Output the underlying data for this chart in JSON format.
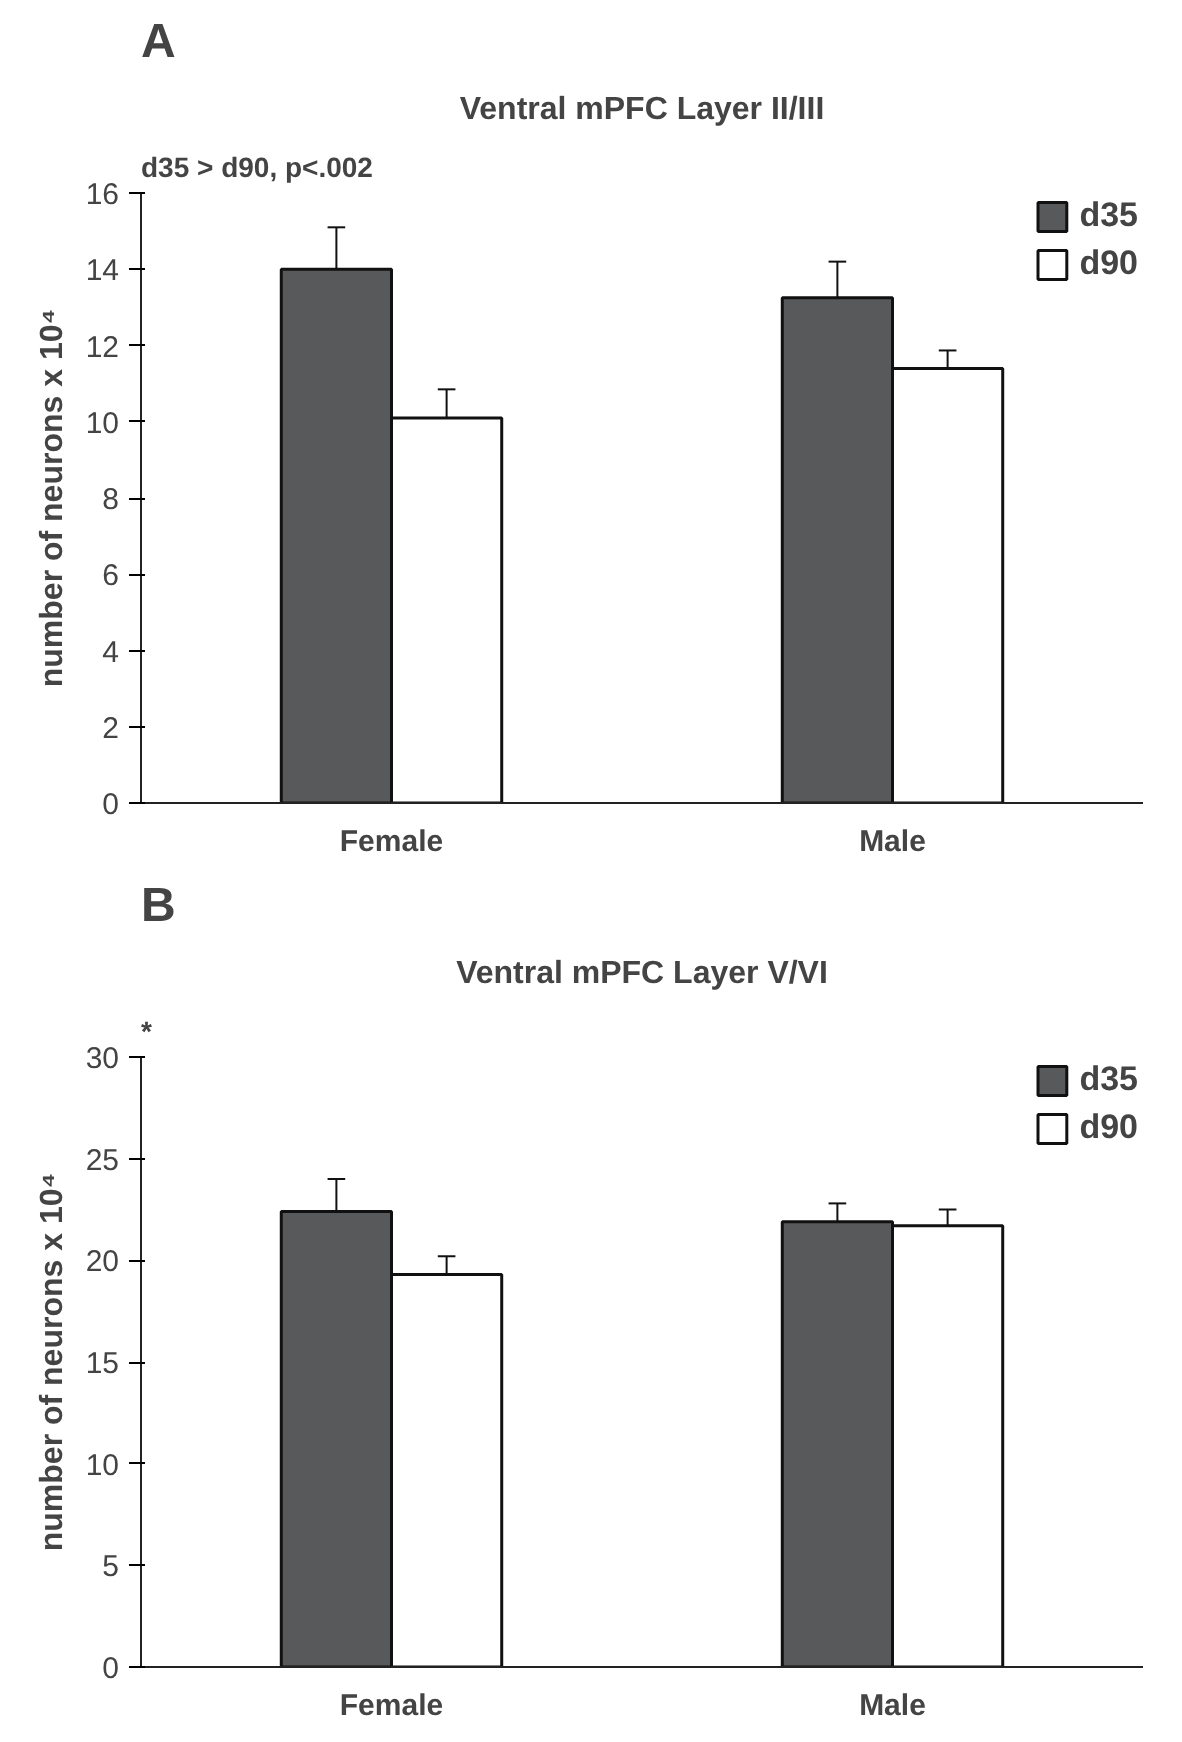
{
  "chart_data": [
    {
      "type": "bar",
      "title": "Ventral mPFC Layer II/III",
      "ylabel": "number of neurons x 10⁴",
      "categories": [
        "Female",
        "Male"
      ],
      "series": [
        {
          "name": "d35",
          "color": "#58595b",
          "values": [
            14.0,
            13.25
          ],
          "errors": [
            [
              14.0,
              15.1
            ],
            [
              13.25,
              14.2
            ]
          ]
        },
        {
          "name": "d90",
          "color": "#ffffff",
          "values": [
            10.1,
            11.4
          ],
          "errors": [
            [
              10.1,
              10.85
            ],
            [
              11.4,
              11.87
            ]
          ]
        }
      ],
      "ylim": [
        0,
        16
      ],
      "yticks": [
        0,
        2,
        4,
        6,
        8,
        10,
        12,
        14,
        16
      ],
      "grid": false,
      "legend": "top right",
      "annotations": [
        "A",
        "d35 > d90, p<.002"
      ]
    },
    {
      "type": "bar",
      "title": "Ventral mPFC Layer V/VI",
      "ylabel": "number of neurons x 10⁴",
      "categories": [
        "Female",
        "Male"
      ],
      "series": [
        {
          "name": "d35",
          "color": "#58595b",
          "values": [
            22.4,
            21.9
          ],
          "errors": [
            [
              22.4,
              24.0
            ],
            [
              21.9,
              22.8
            ]
          ]
        },
        {
          "name": "d90",
          "color": "#ffffff",
          "values": [
            19.3,
            21.7
          ],
          "errors": [
            [
              19.3,
              20.2
            ],
            [
              21.7,
              22.5
            ]
          ]
        }
      ],
      "ylim": [
        0,
        30
      ],
      "yticks": [
        0,
        5,
        10,
        15,
        20,
        25,
        30
      ],
      "grid": false,
      "legend": "top right",
      "annotations": [
        "B",
        "*"
      ]
    }
  ]
}
